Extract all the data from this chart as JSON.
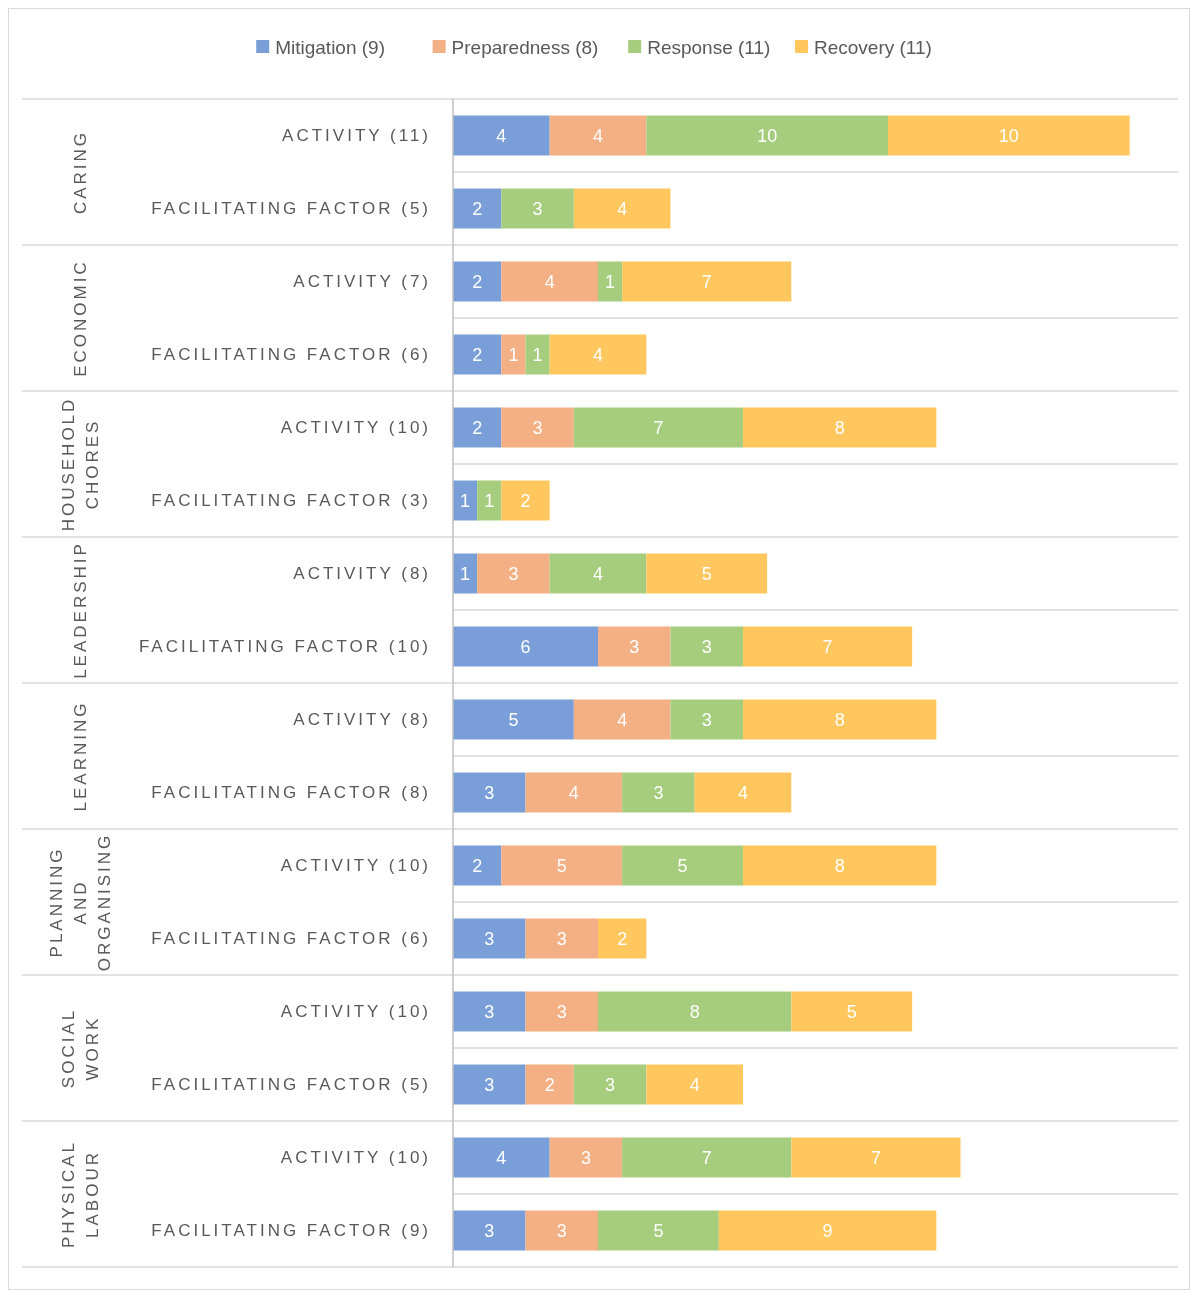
{
  "chart_data": {
    "type": "bar",
    "orientation": "horizontal",
    "stacked": true,
    "data_labels": true,
    "legend": "top",
    "tick_labels": "y",
    "xlim": [
      0,
      30
    ],
    "categories": [
      "ACTIVITY (11)",
      "FACILITATING FACTOR (5)",
      "ACTIVITY (7)",
      "FACILITATING FACTOR (6)",
      "ACTIVITY (10)",
      "FACILITATING FACTOR (3)",
      "ACTIVITY (8)",
      "FACILITATING FACTOR (10)",
      "ACTIVITY (8)",
      "FACILITATING FACTOR (8)",
      "ACTIVITY (10)",
      "FACILITATING FACTOR (6)",
      "ACTIVITY (10)",
      "FACILITATING FACTOR (5)",
      "ACTIVITY (10)",
      "FACILITATING FACTOR (9)"
    ],
    "annotations": [
      "CARING",
      "ECONOMIC",
      "HOUSEHOLD CHORES",
      "LEADERSHIP",
      "LEARNING",
      "PLANNING AND ORGANISING",
      "SOCIAL WORK",
      "PHYSICAL LABOUR"
    ],
    "series": [
      {
        "name": "Mitigation (9)",
        "color": "#7a9fd8",
        "values": [
          4,
          2,
          2,
          2,
          2,
          1,
          1,
          6,
          5,
          3,
          2,
          3,
          3,
          3,
          4,
          3
        ]
      },
      {
        "name": "Preparedness (8)",
        "color": "#f3b084",
        "values": [
          4,
          null,
          4,
          1,
          3,
          null,
          3,
          3,
          4,
          4,
          5,
          3,
          3,
          2,
          3,
          3
        ]
      },
      {
        "name": "Response (11)",
        "color": "#a6cc7d",
        "values": [
          10,
          3,
          1,
          1,
          7,
          1,
          4,
          3,
          3,
          3,
          5,
          null,
          8,
          3,
          7,
          5
        ]
      },
      {
        "name": "Recovery (11)",
        "color": "#ffc75e",
        "values": [
          10,
          4,
          7,
          4,
          8,
          2,
          5,
          7,
          8,
          4,
          8,
          2,
          5,
          4,
          7,
          9
        ]
      }
    ]
  }
}
